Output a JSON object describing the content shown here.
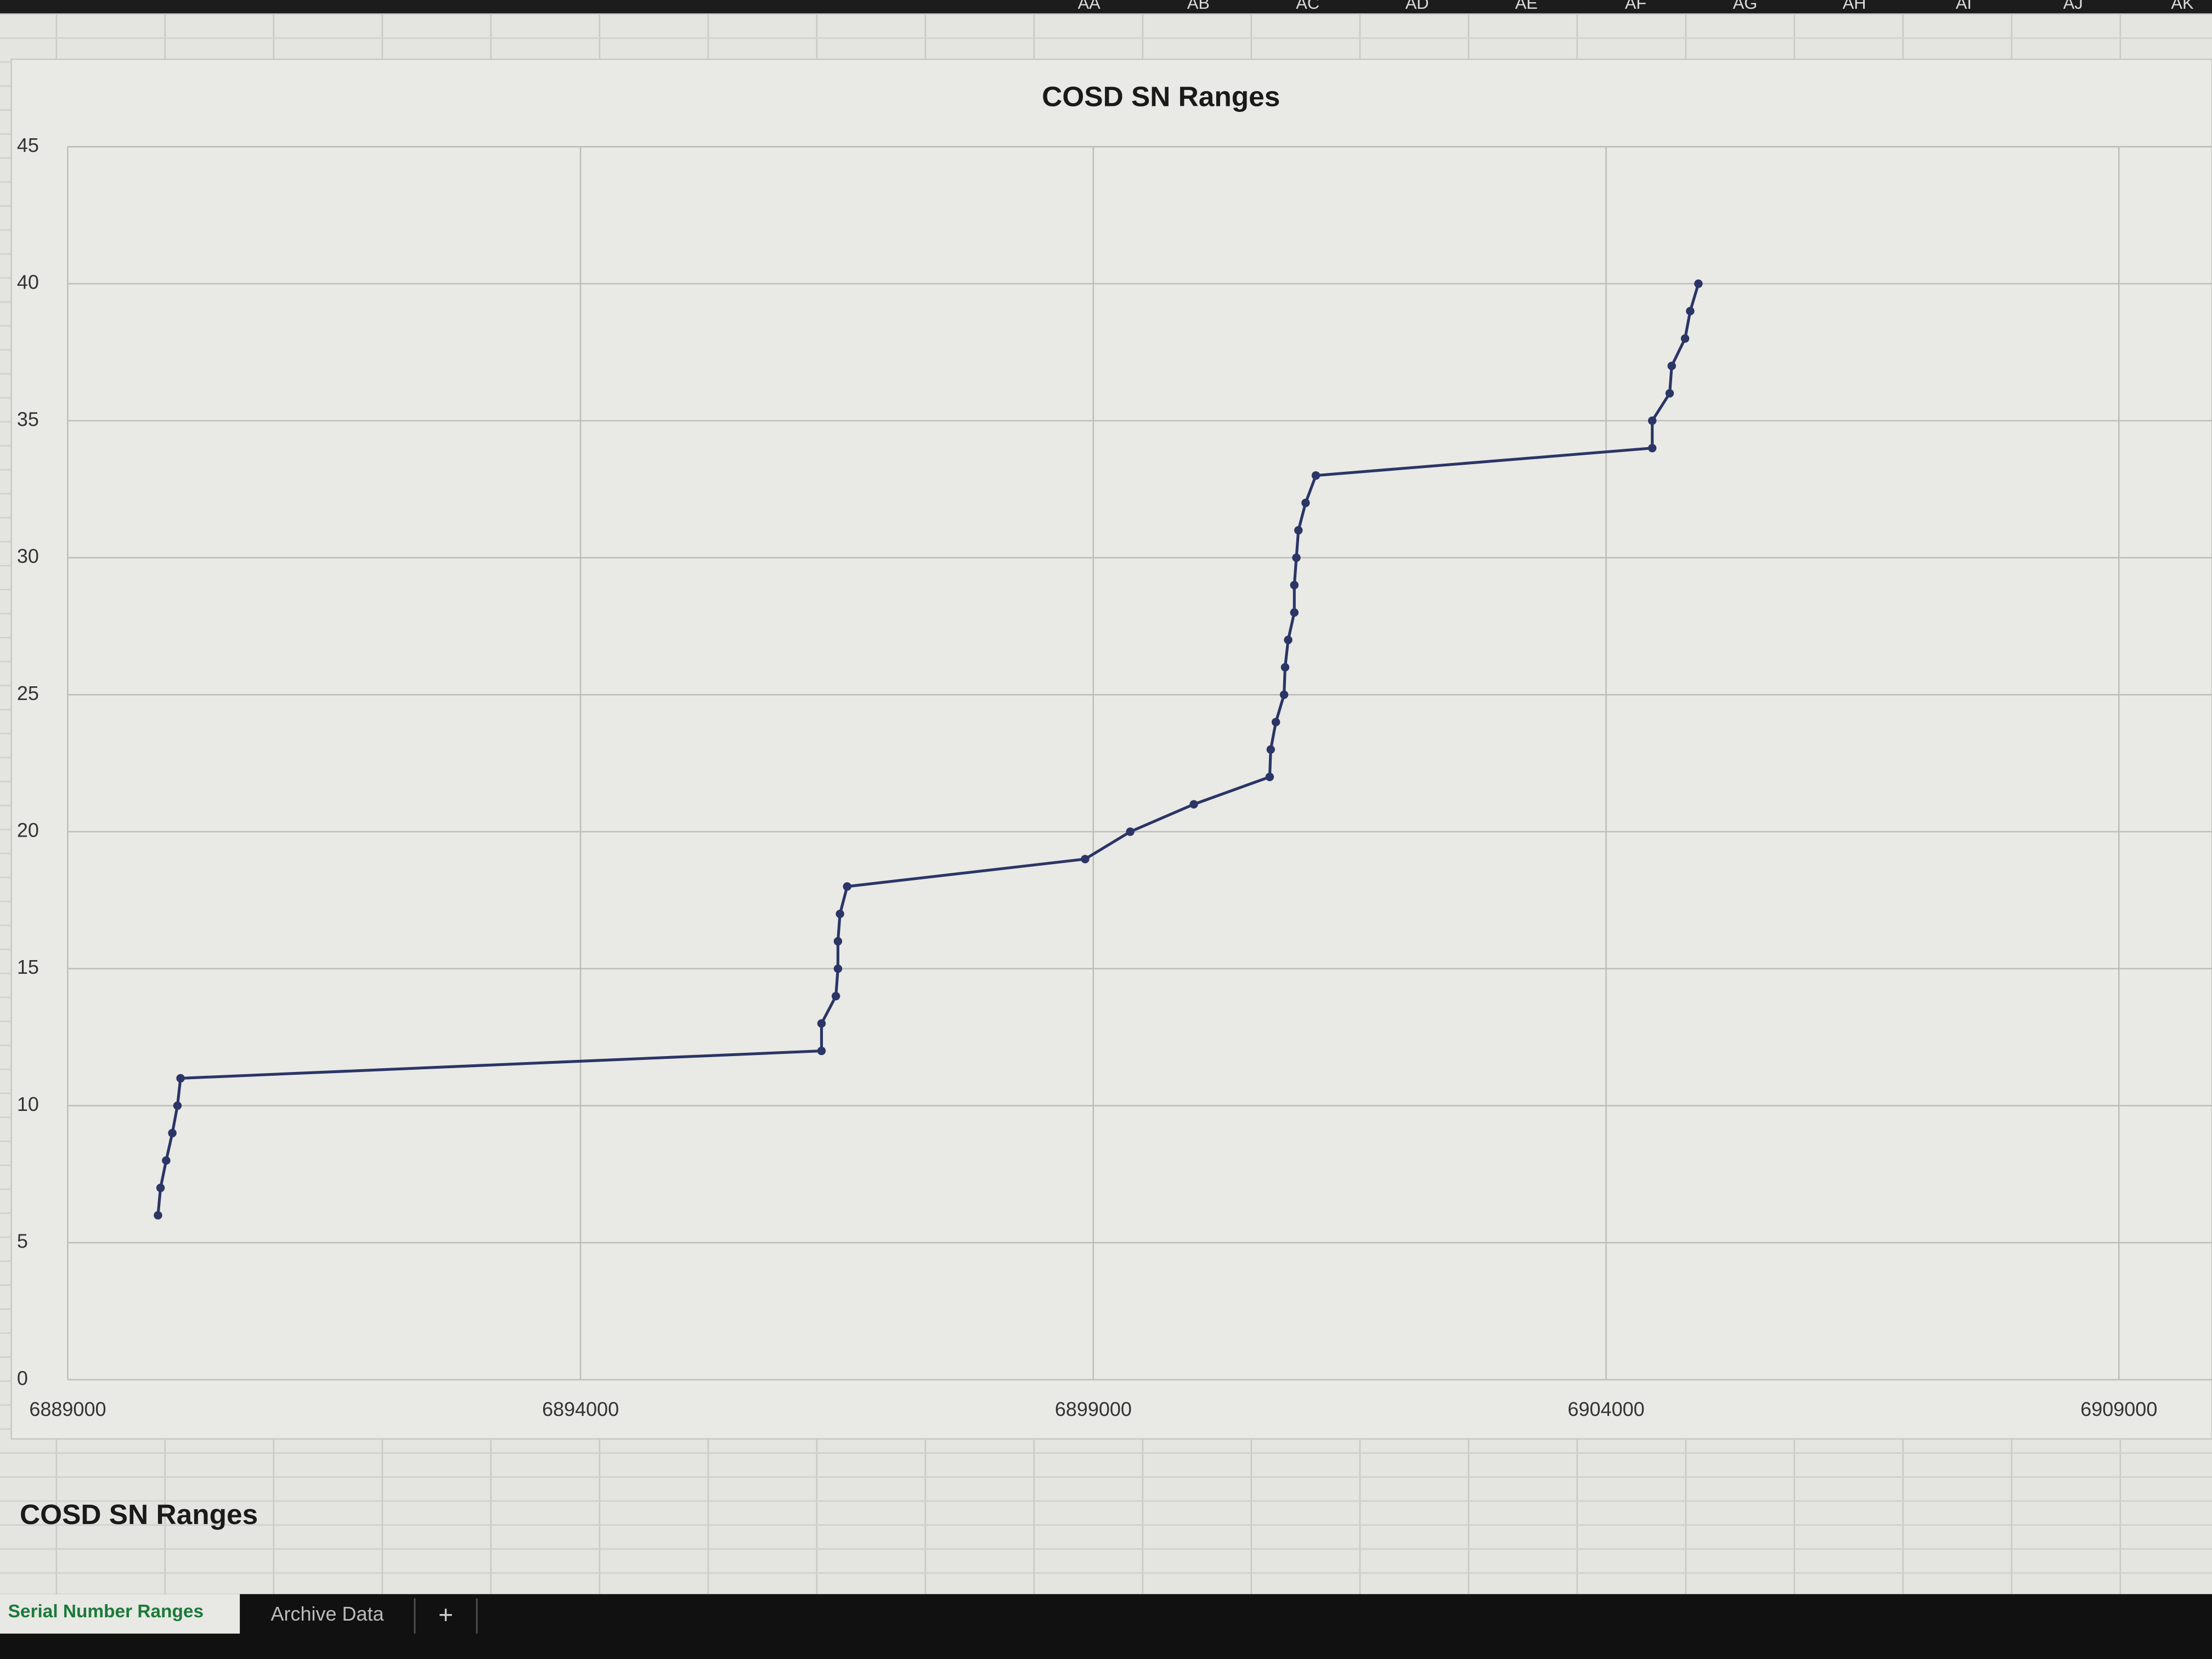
{
  "columns": [
    "AA",
    "AB",
    "AC",
    "AD",
    "AE",
    "AF",
    "AG",
    "AH",
    "AI",
    "AJ",
    "AK"
  ],
  "chart_data": {
    "type": "line",
    "title": "COSD SN Ranges",
    "x": [
      6889880,
      6889905,
      6889960,
      6890020,
      6890070,
      6890100,
      6896350,
      6896350,
      6896490,
      6896510,
      6896510,
      6896530,
      6896600,
      6898920,
      6899360,
      6899980,
      6900720,
      6900730,
      6900780,
      6900860,
      6900870,
      6900900,
      6900960,
      6900960,
      6900980,
      6901000,
      6901070,
      6901170,
      6904450,
      6904450,
      6904620,
      6904640,
      6904770,
      6904820,
      6904900
    ],
    "series": [
      {
        "color": "#2b3566",
        "values": [
          6,
          7,
          8,
          9,
          10,
          11,
          12,
          13,
          14,
          15,
          16,
          17,
          18,
          19,
          20,
          21,
          22,
          23,
          24,
          25,
          26,
          27,
          28,
          29,
          30,
          31,
          32,
          33,
          34,
          35,
          36,
          37,
          38,
          39,
          40
        ]
      }
    ],
    "xlim": [
      6889000,
      6909000
    ],
    "xticks": [
      6889000,
      6894000,
      6899000,
      6904000,
      6909000
    ],
    "ylim": [
      0,
      45
    ],
    "yticks": [
      0,
      5,
      10,
      15,
      20,
      25,
      30,
      35,
      40,
      45
    ],
    "grid": true
  },
  "sheet_title": "COSD SN Ranges",
  "tabs": [
    "Serial Number Ranges",
    "Archive Data",
    "+"
  ]
}
